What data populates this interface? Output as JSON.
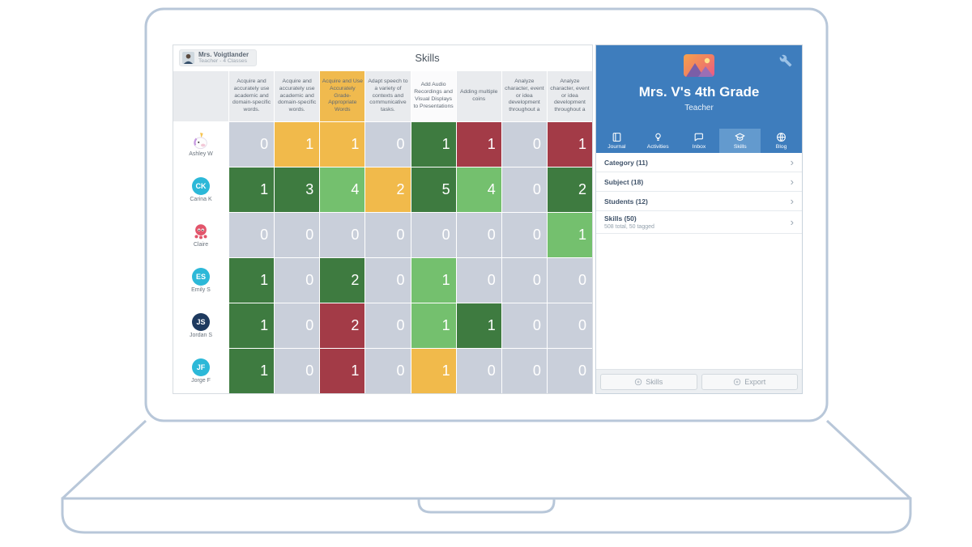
{
  "header": {
    "badge_name": "Mrs. Voigtlander",
    "badge_sub": "Teacher - 4 Classes",
    "title": "Skills"
  },
  "grid": {
    "palette": {
      "g": "#c9cfda",
      "G": "#3e7b40",
      "L": "#74c06e",
      "Y": "#f1ba4b",
      "R": "#a33b47"
    },
    "columns": [
      {
        "label": "Acquire and accurately use academic and domain-specific words.",
        "bg": "#e9ebee"
      },
      {
        "label": "Acquire and accurately use academic and domain-specific words.",
        "bg": "#e9ebee"
      },
      {
        "label": "Acquire and Use Accurately Grade-Appropriate Words",
        "bg": "#f0ba4e"
      },
      {
        "label": "Adapt speech to a variety of contexts and communicative tasks.",
        "bg": "#e9ebee"
      },
      {
        "label": "Add Audio Recordings and Visual Displays to Presentations",
        "bg": "#fbfbfc"
      },
      {
        "label": "Adding multiple coins",
        "bg": "#e9ebee"
      },
      {
        "label": "Analyze character, event or idea development throughout a",
        "bg": "#e9ebee"
      },
      {
        "label": "Analyze character, event or idea development throughout a",
        "bg": "#e9ebee"
      }
    ],
    "students": [
      {
        "name": "Ashley W",
        "avatar": {
          "kind": "unicorn"
        },
        "values": [
          0,
          1,
          1,
          0,
          1,
          1,
          0,
          1
        ],
        "colors": [
          "g",
          "Y",
          "Y",
          "g",
          "G",
          "R",
          "g",
          "R"
        ]
      },
      {
        "name": "Carina K",
        "avatar": {
          "kind": "initials",
          "text": "CK",
          "bg": "#2cb8d8"
        },
        "values": [
          1,
          3,
          4,
          2,
          5,
          4,
          0,
          2
        ],
        "colors": [
          "G",
          "G",
          "L",
          "Y",
          "G",
          "L",
          "g",
          "G"
        ]
      },
      {
        "name": "Claire",
        "avatar": {
          "kind": "octopus"
        },
        "values": [
          0,
          0,
          0,
          0,
          0,
          0,
          0,
          1
        ],
        "colors": [
          "g",
          "g",
          "g",
          "g",
          "g",
          "g",
          "g",
          "L"
        ]
      },
      {
        "name": "Emily S",
        "avatar": {
          "kind": "initials",
          "text": "ES",
          "bg": "#2cb8d8"
        },
        "values": [
          1,
          0,
          2,
          0,
          1,
          0,
          0,
          0
        ],
        "colors": [
          "G",
          "g",
          "G",
          "g",
          "L",
          "g",
          "g",
          "g"
        ]
      },
      {
        "name": "Jordan S",
        "avatar": {
          "kind": "initials",
          "text": "JS",
          "bg": "#1e3a5f"
        },
        "values": [
          1,
          0,
          2,
          0,
          1,
          1,
          0,
          0
        ],
        "colors": [
          "G",
          "g",
          "R",
          "g",
          "L",
          "G",
          "g",
          "g"
        ]
      },
      {
        "name": "Jorge F",
        "avatar": {
          "kind": "initials",
          "text": "JF",
          "bg": "#2cb8d8"
        },
        "values": [
          1,
          0,
          1,
          0,
          1,
          0,
          0,
          0
        ],
        "colors": [
          "G",
          "g",
          "R",
          "g",
          "Y",
          "g",
          "g",
          "g"
        ]
      }
    ]
  },
  "sidebar": {
    "class_name": "Mrs. V's 4th Grade",
    "class_role": "Teacher",
    "accent": "#3e7dbd",
    "selected_tab_color": "#639ace",
    "tabs": [
      {
        "label": "Journal",
        "icon": "journal-icon",
        "selected": false
      },
      {
        "label": "Activities",
        "icon": "activities-icon",
        "selected": false
      },
      {
        "label": "Inbox",
        "icon": "inbox-icon",
        "selected": false
      },
      {
        "label": "Skills",
        "icon": "skills-icon",
        "selected": true
      },
      {
        "label": "Blog",
        "icon": "blog-icon",
        "selected": false
      }
    ],
    "list": [
      {
        "label": "Category (11)"
      },
      {
        "label": "Subject (18)"
      },
      {
        "label": "Students (12)"
      },
      {
        "label": "Skills (50)",
        "sub": "508 total, 50 tagged"
      }
    ],
    "buttons": [
      {
        "label": "Skills"
      },
      {
        "label": "Export"
      }
    ]
  }
}
